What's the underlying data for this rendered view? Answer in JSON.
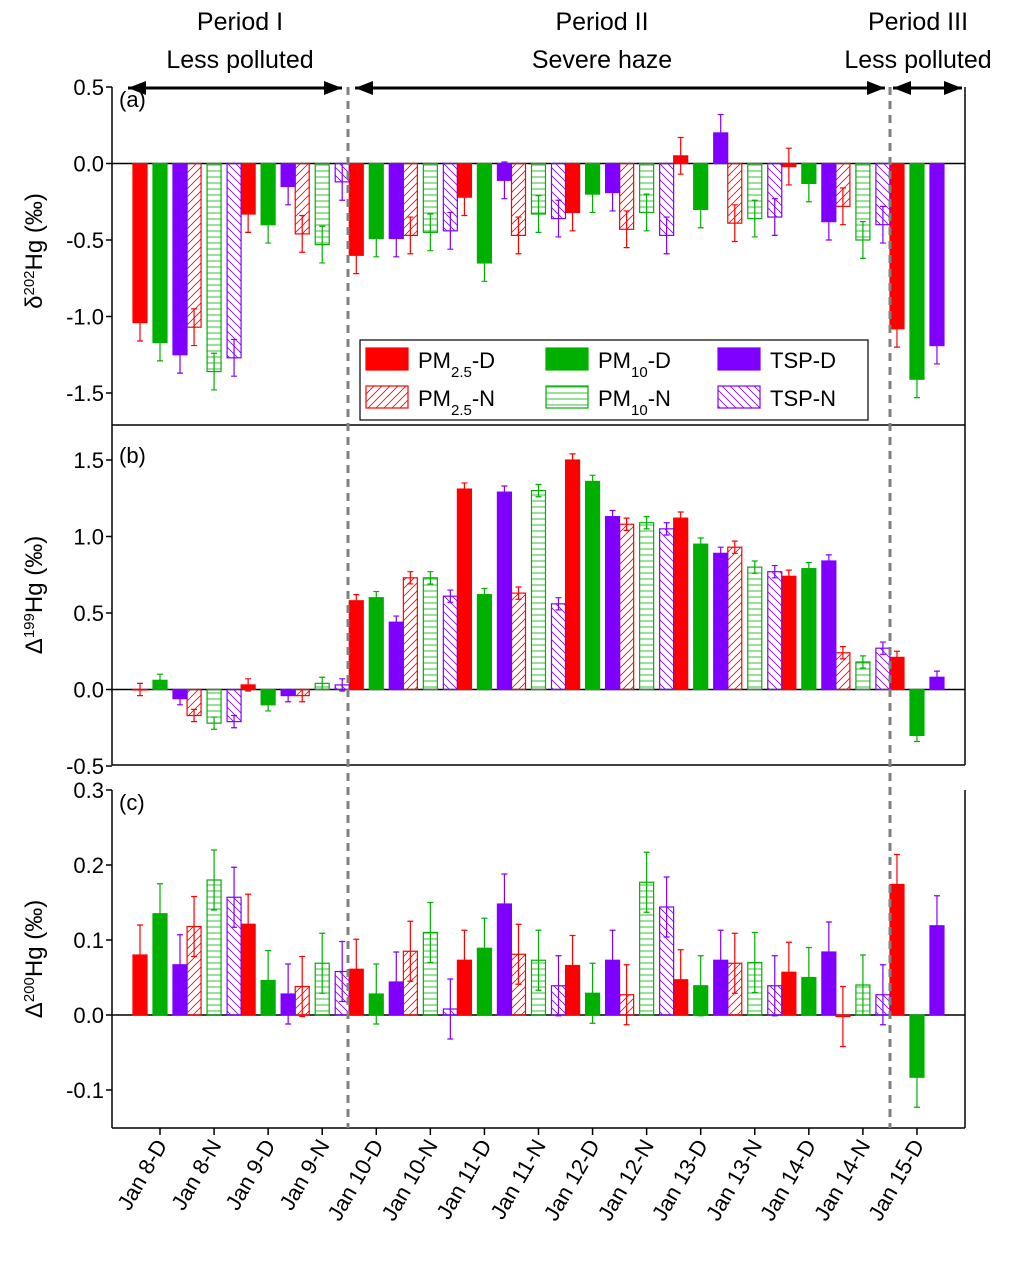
{
  "chart_data": [
    {
      "type": "bar",
      "panel_label": "(a)",
      "ylabel": {
        "prefix": "δ",
        "sup": "202",
        "rest": "Hg (‰)"
      },
      "ylim": [
        -1.7,
        0.5
      ],
      "yticks": [
        0.5,
        0.0,
        -0.5,
        -1.0,
        -1.5
      ],
      "tick_labels": [
        "0.5",
        "0.0",
        "-0.5",
        "-1.0",
        "-1.5"
      ],
      "series": [
        {
          "values": [
            -1.04,
            -1.07,
            -0.33,
            -0.46,
            -0.6,
            -0.47,
            -0.22,
            -0.47,
            -0.32,
            -0.43,
            0.05,
            -0.39,
            -0.02,
            -0.28,
            -1.08
          ],
          "errors": 0.12
        },
        {
          "values": [
            -1.17,
            -1.36,
            -0.4,
            -0.53,
            -0.49,
            -0.45,
            -0.65,
            -0.33,
            -0.2,
            -0.32,
            -0.3,
            -0.36,
            -0.13,
            -0.5,
            -1.41
          ],
          "errors": 0.12
        },
        {
          "values": [
            -1.25,
            -1.27,
            -0.15,
            -0.12,
            -0.49,
            -0.44,
            -0.11,
            -0.36,
            -0.19,
            -0.47,
            0.2,
            -0.35,
            -0.38,
            -0.4,
            -1.19
          ],
          "errors": 0.12
        }
      ]
    },
    {
      "type": "bar",
      "panel_label": "(b)",
      "ylabel": {
        "prefix": "Δ",
        "sup": "199",
        "rest": "Hg (‰)"
      },
      "ylim": [
        -0.5,
        1.73
      ],
      "yticks": [
        1.5,
        1.0,
        0.5,
        0.0,
        -0.5
      ],
      "tick_labels": [
        "1.5",
        "1.0",
        "0.5",
        "0.0",
        "-0.5"
      ],
      "series": [
        {
          "values": [
            0.0,
            -0.17,
            0.03,
            -0.04,
            0.58,
            0.73,
            1.31,
            0.63,
            1.5,
            1.08,
            1.12,
            0.93,
            0.74,
            0.24,
            0.21
          ],
          "errors": 0.04
        },
        {
          "values": [
            0.06,
            -0.22,
            -0.1,
            0.04,
            0.6,
            0.73,
            0.62,
            1.3,
            1.36,
            1.09,
            0.95,
            0.8,
            0.79,
            0.18,
            -0.3
          ],
          "errors": 0.04
        },
        {
          "values": [
            -0.06,
            -0.21,
            -0.04,
            0.03,
            0.44,
            0.61,
            1.29,
            0.56,
            1.13,
            1.05,
            0.89,
            0.77,
            0.84,
            0.27,
            0.08
          ],
          "errors": 0.04
        }
      ]
    },
    {
      "type": "bar",
      "panel_label": "(c)",
      "ylabel": {
        "prefix": "Δ",
        "sup": "200",
        "rest": "Hg (‰)"
      },
      "ylim": [
        -0.15,
        0.3
      ],
      "yticks": [
        0.3,
        0.2,
        0.1,
        0.0,
        -0.1
      ],
      "tick_labels": [
        "0.3",
        "0.2",
        "0.1",
        "0.0",
        "-0.1"
      ],
      "series": [
        {
          "values": [
            0.08,
            0.118,
            0.121,
            0.038,
            0.061,
            0.085,
            0.073,
            0.081,
            0.066,
            0.027,
            0.047,
            0.069,
            0.057,
            -0.002,
            0.174
          ],
          "errors": 0.04
        },
        {
          "values": [
            0.135,
            0.18,
            0.046,
            0.069,
            0.028,
            0.11,
            0.089,
            0.073,
            0.029,
            0.177,
            0.039,
            0.07,
            0.05,
            0.04,
            -0.083
          ],
          "errors": 0.04
        },
        {
          "values": [
            0.067,
            0.157,
            0.028,
            0.058,
            0.044,
            0.008,
            0.148,
            0.039,
            0.073,
            0.144,
            0.073,
            0.039,
            0.084,
            0.027,
            0.119
          ],
          "errors": 0.04
        }
      ]
    }
  ],
  "categories": [
    "Jan 8-D",
    "Jan 8-N",
    "Jan 9-D",
    "Jan 9-N",
    "Jan 10-D",
    "Jan 10-N",
    "Jan 11-D",
    "Jan 11-N",
    "Jan 12-D",
    "Jan 12-N",
    "Jan 13-D",
    "Jan 13-N",
    "Jan 14-D",
    "Jan 14-N",
    "Jan 15-D"
  ],
  "colors": [
    "#ff0000",
    "#00b000",
    "#8000ff"
  ],
  "legend": [
    {
      "main": "PM",
      "sub": "2.5",
      "suffix": "-D"
    },
    {
      "main": "PM",
      "sub": "10",
      "suffix": "-D"
    },
    {
      "main": "TSP",
      "sub": "",
      "suffix": "-D"
    },
    {
      "main": "PM",
      "sub": "2.5",
      "suffix": "-N"
    },
    {
      "main": "PM",
      "sub": "10",
      "suffix": "-N"
    },
    {
      "main": "TSP",
      "sub": "",
      "suffix": "-N"
    }
  ],
  "periods": [
    {
      "name": "Period I",
      "desc": "Less polluted"
    },
    {
      "name": "Period II",
      "desc": "Severe haze"
    },
    {
      "name": "Period III",
      "desc": "Less polluted"
    }
  ]
}
